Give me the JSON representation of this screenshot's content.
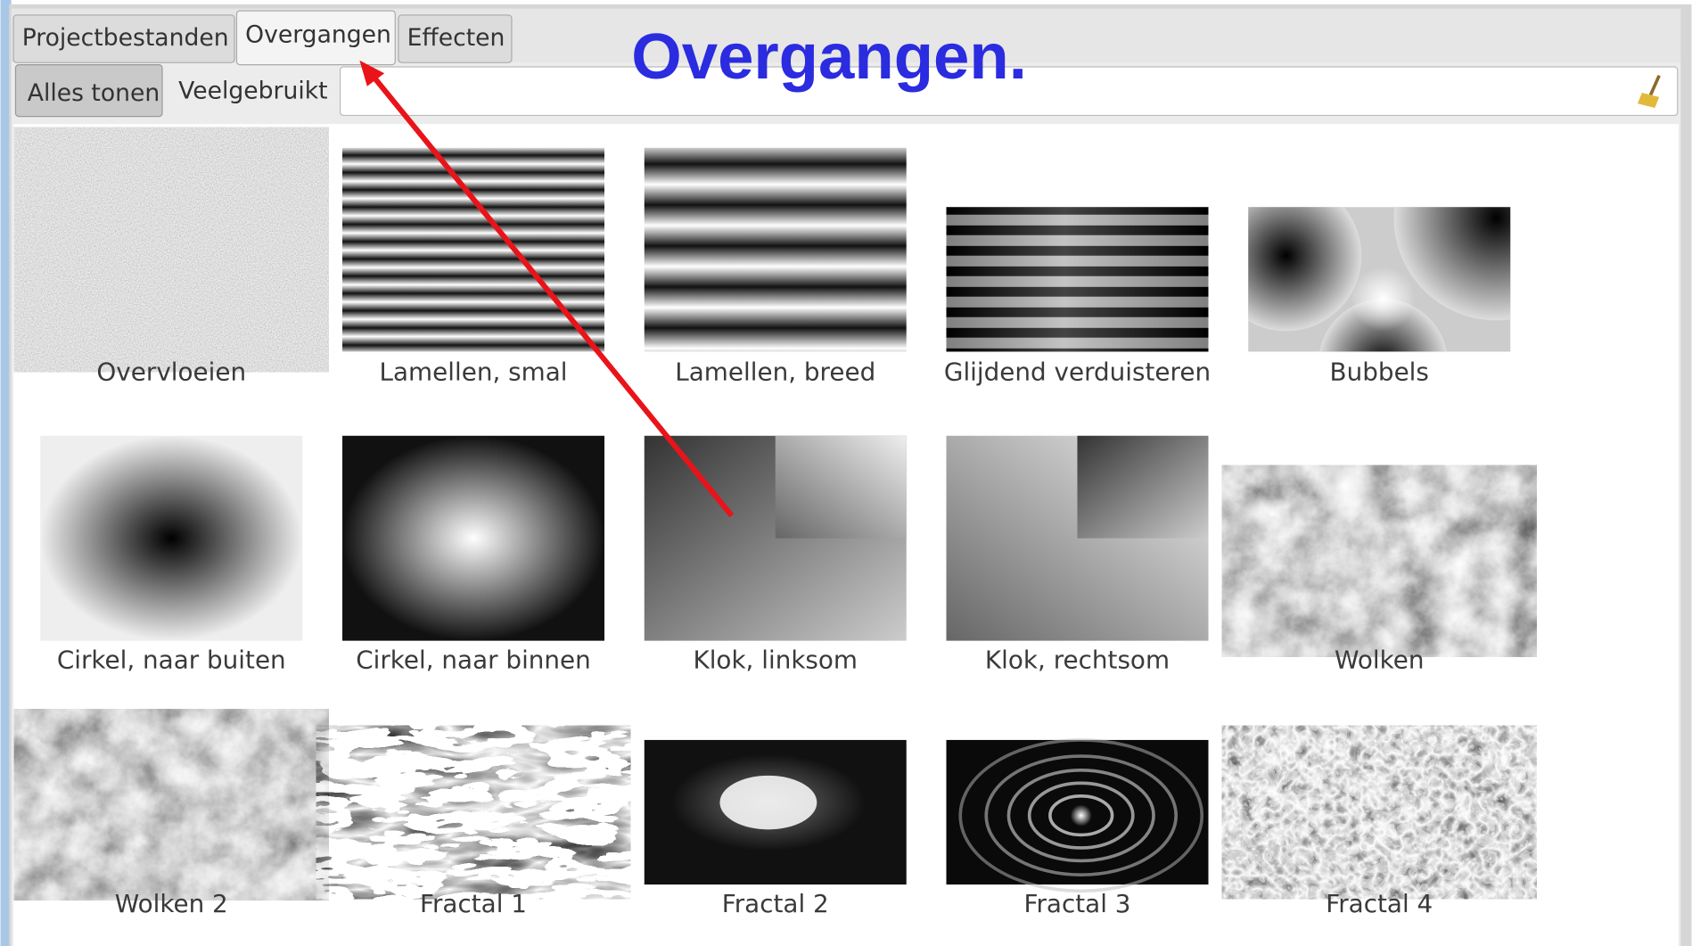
{
  "tabs": [
    "Projectbestanden",
    "Overgangen",
    "Effecten"
  ],
  "filters": [
    "Alles tonen",
    "Veelgebruikt"
  ],
  "annotation": "Overgangen.",
  "items": [
    "Overvloeien",
    "Lamellen, smal",
    "Lamellen, breed",
    "Glijdend verduisteren",
    "Bubbels",
    "Cirkel, naar buiten",
    "Cirkel, naar binnen",
    "Klok, linksom",
    "Klok, rechtsom",
    "Wolken",
    "Wolken 2",
    "Fractal 1",
    "Fractal 2",
    "Fractal 3",
    "Fractal 4"
  ]
}
